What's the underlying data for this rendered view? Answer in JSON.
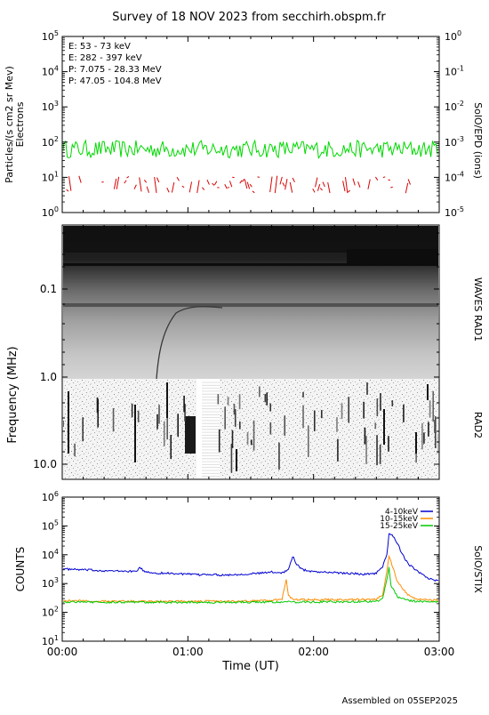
{
  "title": "Survey of 18 NOV 2023 from secchirh.obspm.fr",
  "footer": "Assembled on 05SEP2025",
  "chart_data": [
    {
      "type": "line",
      "panel": "epd",
      "ylabel": [
        "Particles/(s cm2 sr Mev)",
        "Electrons"
      ],
      "ylabel_right": "SolO/EPD (ions)",
      "yscale": "log",
      "ylim": [
        1,
        100000
      ],
      "ylim_right": [
        1e-05,
        1
      ],
      "yticks": [
        {
          "base": "10",
          "exp": "0"
        },
        {
          "base": "10",
          "exp": "1"
        },
        {
          "base": "10",
          "exp": "2"
        },
        {
          "base": "10",
          "exp": "3"
        },
        {
          "base": "10",
          "exp": "4"
        },
        {
          "base": "10",
          "exp": "5"
        }
      ],
      "yticks_right": [
        {
          "base": "10",
          "exp": "-5"
        },
        {
          "base": "10",
          "exp": "-4"
        },
        {
          "base": "10",
          "exp": "-3"
        },
        {
          "base": "10",
          "exp": "-2"
        },
        {
          "base": "10",
          "exp": "-1"
        },
        {
          "base": "10",
          "exp": "0"
        }
      ],
      "xlim": [
        0,
        180
      ],
      "series": [
        {
          "name": "E: 53 - 73 keV",
          "color": "#00d800",
          "axis": "left"
        },
        {
          "name": "E: 282 - 397 keV",
          "color": "#d80000",
          "axis": "left"
        },
        {
          "name": "P: 7.075 - 28.33 MeV",
          "color": "#000000",
          "axis": "right"
        },
        {
          "name": "P: 47.05 - 104.8 MeV",
          "color": "#0000c0",
          "axis": "right"
        }
      ]
    },
    {
      "type": "heatmap",
      "panel": "waves",
      "ylabel": "Frequency (MHz)",
      "ylabel_right_top": "WAVES RAD1",
      "ylabel_right_bottom": "RAD2",
      "yticks": [
        "0.1",
        "1.0",
        "10.0"
      ],
      "xlim": [
        0,
        180
      ]
    },
    {
      "type": "line",
      "panel": "stix",
      "ylabel": "COUNTS",
      "ylabel_right": "SolO/STIX",
      "yscale": "log",
      "ylim": [
        10,
        1000000
      ],
      "yticks": [
        {
          "base": "10",
          "exp": "1"
        },
        {
          "base": "10",
          "exp": "2"
        },
        {
          "base": "10",
          "exp": "3"
        },
        {
          "base": "10",
          "exp": "4"
        },
        {
          "base": "10",
          "exp": "5"
        },
        {
          "base": "10",
          "exp": "6"
        }
      ],
      "xlim": [
        0,
        180
      ],
      "xticks": [
        {
          "value": 0,
          "label": "00:00"
        },
        {
          "value": 60,
          "label": "01:00"
        },
        {
          "value": 120,
          "label": "02:00"
        },
        {
          "value": 180,
          "label": "03:00"
        }
      ],
      "xlabel": "Time (UT)",
      "series": [
        {
          "name": "4-10keV",
          "color": "#0000d0",
          "x": [
            0,
            10,
            20,
            25,
            30,
            35,
            37,
            40,
            45,
            50,
            55,
            60,
            65,
            70,
            75,
            80,
            85,
            90,
            95,
            100,
            105,
            108,
            110,
            112,
            115,
            120,
            125,
            130,
            135,
            140,
            145,
            150,
            153,
            155,
            156,
            158,
            160,
            162,
            165,
            170,
            175,
            180
          ],
          "y": [
            3200,
            3000,
            2800,
            2700,
            2700,
            2600,
            3500,
            2500,
            2300,
            2300,
            2200,
            2100,
            2000,
            2100,
            2000,
            2000,
            2100,
            2200,
            2300,
            2500,
            2400,
            3000,
            9000,
            4500,
            3000,
            2600,
            2500,
            2400,
            2300,
            2200,
            2100,
            2300,
            4000,
            10000,
            50000,
            45000,
            25000,
            12000,
            5000,
            2500,
            1500,
            1200
          ]
        },
        {
          "name": "10-15keV",
          "color": "#ff8c00",
          "x": [
            0,
            20,
            40,
            60,
            80,
            100,
            105,
            107,
            108,
            110,
            120,
            140,
            150,
            153,
            155,
            156,
            158,
            160,
            165,
            170,
            180
          ],
          "y": [
            250,
            245,
            240,
            240,
            245,
            260,
            300,
            1400,
            400,
            280,
            270,
            280,
            290,
            400,
            2500,
            9000,
            3500,
            1200,
            400,
            280,
            260
          ]
        },
        {
          "name": "15-25keV",
          "color": "#00c800",
          "x": [
            0,
            20,
            40,
            60,
            80,
            100,
            120,
            140,
            150,
            153,
            155,
            156,
            157,
            160,
            165,
            170,
            180
          ],
          "y": [
            230,
            225,
            225,
            222,
            225,
            228,
            230,
            235,
            240,
            300,
            1500,
            3500,
            900,
            350,
            260,
            240,
            230
          ]
        }
      ]
    }
  ]
}
